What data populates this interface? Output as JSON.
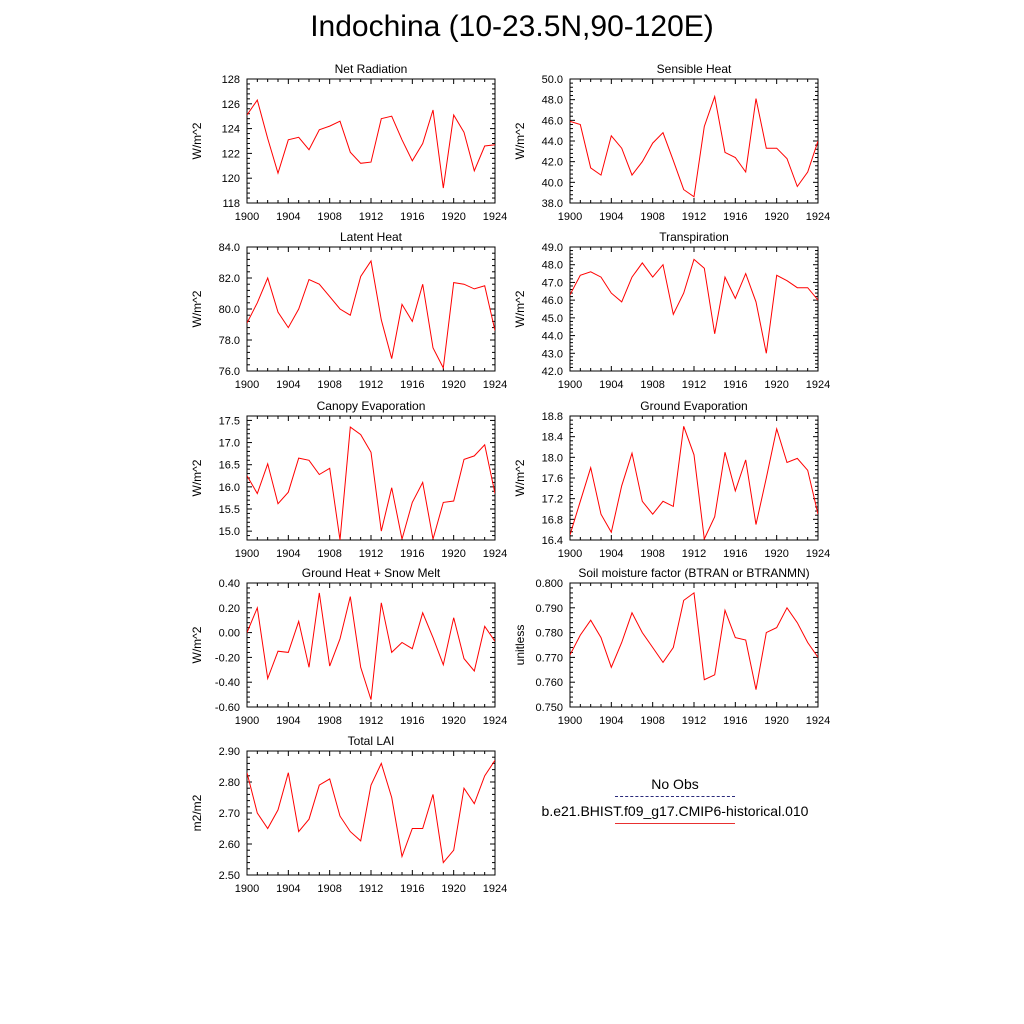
{
  "title": "Indochina (10-23.5N,90-120E)",
  "legend": {
    "obs_label": "No Obs",
    "model_label": "b.e21.BHIST.f09_g17.CMIP6-historical.010",
    "obs_color": "#2a2a7a",
    "model_color": "#ff0000"
  },
  "chart_data": [
    {
      "type": "line",
      "title": "Net Radiation",
      "ylabel": "W/m^2",
      "ylim": [
        118,
        128
      ],
      "yticks": [
        118,
        120,
        122,
        124,
        126,
        128
      ],
      "ytick_labels": [
        "118",
        "120",
        "122",
        "124",
        "126",
        "128"
      ],
      "xlim": [
        1900,
        1924
      ],
      "xticks": [
        1900,
        1904,
        1908,
        1912,
        1916,
        1920,
        1924
      ],
      "xtick_labels": [
        "1900",
        "1904",
        "1908",
        "1912",
        "1916",
        "1920",
        "1924"
      ],
      "x": [
        1900,
        1901,
        1902,
        1903,
        1904,
        1905,
        1906,
        1907,
        1908,
        1909,
        1910,
        1911,
        1912,
        1913,
        1914,
        1915,
        1916,
        1917,
        1918,
        1919,
        1920,
        1921,
        1922,
        1923,
        1924
      ],
      "series": [
        {
          "name": "b.e21.BHIST.f09_g17.CMIP6-historical.010",
          "color": "#ff0000",
          "values": [
            125.1,
            126.3,
            123.2,
            120.4,
            123.1,
            123.3,
            122.3,
            123.9,
            124.2,
            124.6,
            122.1,
            121.2,
            121.3,
            124.8,
            125.0,
            123.1,
            121.4,
            122.8,
            125.5,
            119.2,
            125.1,
            123.7,
            120.6,
            122.6,
            122.7
          ]
        }
      ]
    },
    {
      "type": "line",
      "title": "Sensible Heat",
      "ylabel": "W/m^2",
      "ylim": [
        38,
        50
      ],
      "yticks": [
        38,
        40,
        42,
        44,
        46,
        48,
        50
      ],
      "ytick_labels": [
        "38.0",
        "40.0",
        "42.0",
        "44.0",
        "46.0",
        "48.0",
        "50.0"
      ],
      "xlim": [
        1900,
        1924
      ],
      "xticks": [
        1900,
        1904,
        1908,
        1912,
        1916,
        1920,
        1924
      ],
      "xtick_labels": [
        "1900",
        "1904",
        "1908",
        "1912",
        "1916",
        "1920",
        "1924"
      ],
      "x": [
        1900,
        1901,
        1902,
        1903,
        1904,
        1905,
        1906,
        1907,
        1908,
        1909,
        1910,
        1911,
        1912,
        1913,
        1914,
        1915,
        1916,
        1917,
        1918,
        1919,
        1920,
        1921,
        1922,
        1923,
        1924
      ],
      "series": [
        {
          "name": "b.e21.BHIST.f09_g17.CMIP6-historical.010",
          "color": "#ff0000",
          "values": [
            45.9,
            45.6,
            41.4,
            40.7,
            44.5,
            43.3,
            40.7,
            42.0,
            43.8,
            44.8,
            42.1,
            39.3,
            38.6,
            45.4,
            48.3,
            42.9,
            42.4,
            41.0,
            48.1,
            43.3,
            43.3,
            42.3,
            39.6,
            41.0,
            44.0
          ]
        }
      ]
    },
    {
      "type": "line",
      "title": "Latent Heat",
      "ylabel": "W/m^2",
      "ylim": [
        76,
        84
      ],
      "yticks": [
        76,
        78,
        80,
        82,
        84
      ],
      "ytick_labels": [
        "76.0",
        "78.0",
        "80.0",
        "82.0",
        "84.0"
      ],
      "xlim": [
        1900,
        1924
      ],
      "xticks": [
        1900,
        1904,
        1908,
        1912,
        1916,
        1920,
        1924
      ],
      "xtick_labels": [
        "1900",
        "1904",
        "1908",
        "1912",
        "1916",
        "1920",
        "1924"
      ],
      "x": [
        1900,
        1901,
        1902,
        1903,
        1904,
        1905,
        1906,
        1907,
        1908,
        1909,
        1910,
        1911,
        1912,
        1913,
        1914,
        1915,
        1916,
        1917,
        1918,
        1919,
        1920,
        1921,
        1922,
        1923,
        1924
      ],
      "series": [
        {
          "name": "b.e21.BHIST.f09_g17.CMIP6-historical.010",
          "color": "#ff0000",
          "values": [
            79.1,
            80.4,
            82.0,
            79.8,
            78.8,
            80.0,
            81.9,
            81.6,
            80.8,
            80.0,
            79.6,
            82.1,
            83.1,
            79.3,
            76.8,
            80.3,
            79.2,
            81.6,
            77.5,
            76.2,
            81.7,
            81.6,
            81.3,
            81.5,
            78.6
          ]
        }
      ]
    },
    {
      "type": "line",
      "title": "Transpiration",
      "ylabel": "W/m^2",
      "ylim": [
        42,
        49
      ],
      "yticks": [
        42,
        43,
        44,
        45,
        46,
        47,
        48,
        49
      ],
      "ytick_labels": [
        "42.0",
        "43.0",
        "44.0",
        "45.0",
        "46.0",
        "47.0",
        "48.0",
        "49.0"
      ],
      "xlim": [
        1900,
        1924
      ],
      "xticks": [
        1900,
        1904,
        1908,
        1912,
        1916,
        1920,
        1924
      ],
      "xtick_labels": [
        "1900",
        "1904",
        "1908",
        "1912",
        "1916",
        "1920",
        "1924"
      ],
      "x": [
        1900,
        1901,
        1902,
        1903,
        1904,
        1905,
        1906,
        1907,
        1908,
        1909,
        1910,
        1911,
        1912,
        1913,
        1914,
        1915,
        1916,
        1917,
        1918,
        1919,
        1920,
        1921,
        1922,
        1923,
        1924
      ],
      "series": [
        {
          "name": "b.e21.BHIST.f09_g17.CMIP6-historical.010",
          "color": "#ff0000",
          "values": [
            46.3,
            47.4,
            47.6,
            47.3,
            46.4,
            45.9,
            47.3,
            48.1,
            47.3,
            48.0,
            45.2,
            46.4,
            48.3,
            47.8,
            44.1,
            47.3,
            46.1,
            47.5,
            45.9,
            43.0,
            47.4,
            47.1,
            46.7,
            46.7,
            46.0
          ]
        }
      ]
    },
    {
      "type": "line",
      "title": "Canopy Evaporation",
      "ylabel": "W/m^2",
      "ylim": [
        14.8,
        17.6
      ],
      "yticks": [
        15.0,
        15.5,
        16.0,
        16.5,
        17.0,
        17.5
      ],
      "ytick_labels": [
        "15.0",
        "15.5",
        "16.0",
        "16.5",
        "17.0",
        "17.5"
      ],
      "xlim": [
        1900,
        1924
      ],
      "xticks": [
        1900,
        1904,
        1908,
        1912,
        1916,
        1920,
        1924
      ],
      "xtick_labels": [
        "1900",
        "1904",
        "1908",
        "1912",
        "1916",
        "1920",
        "1924"
      ],
      "x": [
        1900,
        1901,
        1902,
        1903,
        1904,
        1905,
        1906,
        1907,
        1908,
        1909,
        1910,
        1911,
        1912,
        1913,
        1914,
        1915,
        1916,
        1917,
        1918,
        1919,
        1920,
        1921,
        1922,
        1923,
        1924
      ],
      "series": [
        {
          "name": "b.e21.BHIST.f09_g17.CMIP6-historical.010",
          "color": "#ff0000",
          "values": [
            16.25,
            15.85,
            16.52,
            15.62,
            15.88,
            16.65,
            16.6,
            16.28,
            16.42,
            14.8,
            17.35,
            17.18,
            16.78,
            15.0,
            15.98,
            14.82,
            15.65,
            16.1,
            14.82,
            15.65,
            15.68,
            16.62,
            16.7,
            16.95,
            15.85
          ]
        }
      ]
    },
    {
      "type": "line",
      "title": "Ground Evaporation",
      "ylabel": "W/m^2",
      "ylim": [
        16.4,
        18.8
      ],
      "yticks": [
        16.4,
        16.8,
        17.2,
        17.6,
        18.0,
        18.4,
        18.8
      ],
      "ytick_labels": [
        "16.4",
        "16.8",
        "17.2",
        "17.6",
        "18.0",
        "18.4",
        "18.8"
      ],
      "xlim": [
        1900,
        1924
      ],
      "xticks": [
        1900,
        1904,
        1908,
        1912,
        1916,
        1920,
        1924
      ],
      "xtick_labels": [
        "1900",
        "1904",
        "1908",
        "1912",
        "1916",
        "1920",
        "1924"
      ],
      "x": [
        1900,
        1901,
        1902,
        1903,
        1904,
        1905,
        1906,
        1907,
        1908,
        1909,
        1910,
        1911,
        1912,
        1913,
        1914,
        1915,
        1916,
        1917,
        1918,
        1919,
        1920,
        1921,
        1922,
        1923,
        1924
      ],
      "series": [
        {
          "name": "b.e21.BHIST.f09_g17.CMIP6-historical.010",
          "color": "#ff0000",
          "values": [
            16.5,
            17.15,
            17.8,
            16.9,
            16.55,
            17.45,
            18.08,
            17.15,
            16.9,
            17.15,
            17.05,
            18.6,
            18.05,
            16.42,
            16.85,
            18.1,
            17.35,
            17.95,
            16.7,
            17.6,
            18.55,
            17.9,
            17.98,
            17.75,
            16.9
          ]
        }
      ]
    },
    {
      "type": "line",
      "title": "Ground Heat + Snow Melt",
      "ylabel": "W/m^2",
      "ylim": [
        -0.6,
        0.4
      ],
      "yticks": [
        -0.6,
        -0.4,
        -0.2,
        0.0,
        0.2,
        0.4
      ],
      "ytick_labels": [
        "-0.60",
        "-0.40",
        "-0.20",
        "0.00",
        "0.20",
        "0.40"
      ],
      "xlim": [
        1900,
        1924
      ],
      "xticks": [
        1900,
        1904,
        1908,
        1912,
        1916,
        1920,
        1924
      ],
      "xtick_labels": [
        "1900",
        "1904",
        "1908",
        "1912",
        "1916",
        "1920",
        "1924"
      ],
      "x": [
        1900,
        1901,
        1902,
        1903,
        1904,
        1905,
        1906,
        1907,
        1908,
        1909,
        1910,
        1911,
        1912,
        1913,
        1914,
        1915,
        1916,
        1917,
        1918,
        1919,
        1920,
        1921,
        1922,
        1923,
        1924
      ],
      "series": [
        {
          "name": "b.e21.BHIST.f09_g17.CMIP6-historical.010",
          "color": "#ff0000",
          "values": [
            0.0,
            0.2,
            -0.37,
            -0.15,
            -0.16,
            0.09,
            -0.28,
            0.32,
            -0.27,
            -0.05,
            0.29,
            -0.28,
            -0.54,
            0.24,
            -0.16,
            -0.08,
            -0.13,
            0.16,
            -0.04,
            -0.26,
            0.12,
            -0.21,
            -0.31,
            0.05,
            -0.07
          ]
        }
      ]
    },
    {
      "type": "line",
      "title": "Soil moisture factor (BTRAN or BTRANMN)",
      "ylabel": "unitless",
      "ylim": [
        0.75,
        0.8
      ],
      "yticks": [
        0.75,
        0.76,
        0.77,
        0.78,
        0.79,
        0.8
      ],
      "ytick_labels": [
        "0.750",
        "0.760",
        "0.770",
        "0.780",
        "0.790",
        "0.800"
      ],
      "xlim": [
        1900,
        1924
      ],
      "xticks": [
        1900,
        1904,
        1908,
        1912,
        1916,
        1920,
        1924
      ],
      "xtick_labels": [
        "1900",
        "1904",
        "1908",
        "1912",
        "1916",
        "1920",
        "1924"
      ],
      "x": [
        1900,
        1901,
        1902,
        1903,
        1904,
        1905,
        1906,
        1907,
        1908,
        1909,
        1910,
        1911,
        1912,
        1913,
        1914,
        1915,
        1916,
        1917,
        1918,
        1919,
        1920,
        1921,
        1922,
        1923,
        1924
      ],
      "series": [
        {
          "name": "b.e21.BHIST.f09_g17.CMIP6-historical.010",
          "color": "#ff0000",
          "values": [
            0.771,
            0.779,
            0.785,
            0.778,
            0.766,
            0.776,
            0.788,
            0.78,
            0.774,
            0.768,
            0.774,
            0.793,
            0.796,
            0.761,
            0.763,
            0.789,
            0.778,
            0.777,
            0.757,
            0.78,
            0.782,
            0.79,
            0.784,
            0.776,
            0.77
          ]
        }
      ]
    },
    {
      "type": "line",
      "title": "Total LAI",
      "ylabel": "m2/m2",
      "ylim": [
        2.5,
        2.9
      ],
      "yticks": [
        2.5,
        2.6,
        2.7,
        2.8,
        2.9
      ],
      "ytick_labels": [
        "2.50",
        "2.60",
        "2.70",
        "2.80",
        "2.90"
      ],
      "xlim": [
        1900,
        1924
      ],
      "xticks": [
        1900,
        1904,
        1908,
        1912,
        1916,
        1920,
        1924
      ],
      "xtick_labels": [
        "1900",
        "1904",
        "1908",
        "1912",
        "1916",
        "1920",
        "1924"
      ],
      "x": [
        1900,
        1901,
        1902,
        1903,
        1904,
        1905,
        1906,
        1907,
        1908,
        1909,
        1910,
        1911,
        1912,
        1913,
        1914,
        1915,
        1916,
        1917,
        1918,
        1919,
        1920,
        1921,
        1922,
        1923,
        1924
      ],
      "series": [
        {
          "name": "b.e21.BHIST.f09_g17.CMIP6-historical.010",
          "color": "#ff0000",
          "values": [
            2.83,
            2.7,
            2.65,
            2.71,
            2.83,
            2.64,
            2.68,
            2.79,
            2.81,
            2.69,
            2.64,
            2.61,
            2.79,
            2.86,
            2.75,
            2.56,
            2.65,
            2.65,
            2.76,
            2.54,
            2.58,
            2.78,
            2.73,
            2.82,
            2.87
          ]
        }
      ]
    }
  ]
}
